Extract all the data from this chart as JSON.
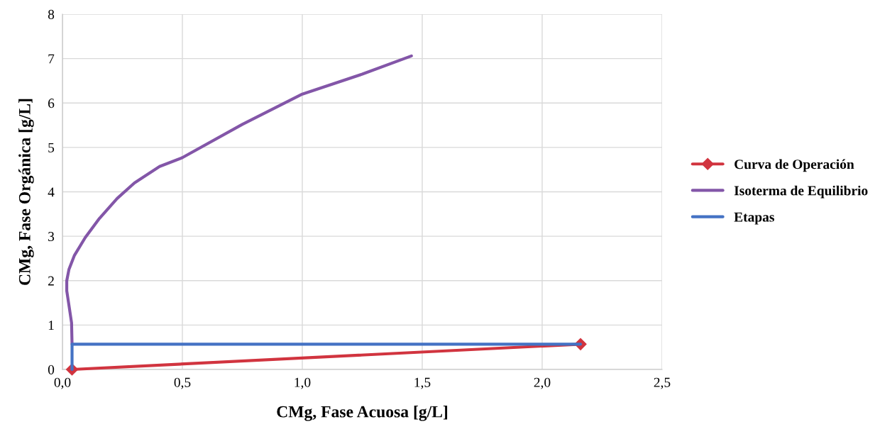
{
  "chart_data": {
    "type": "line",
    "xlabel": "CMg, Fase Acuosa [g/L]",
    "ylabel": "CMg, Fase Orgánica [g/L]",
    "series": [
      {
        "name": "Curva de Operación",
        "color": "#d1343f",
        "marker": "diamond",
        "x": [
          0.04,
          2.16
        ],
        "values": [
          0,
          0.57
        ]
      },
      {
        "name": "Isoterma de Equilibrio",
        "color": "#8356a8",
        "marker": "none",
        "x": [
          0.04,
          0.038,
          0.027,
          0.018,
          0.018,
          0.027,
          0.05,
          0.095,
          0.154,
          0.228,
          0.3,
          0.405,
          0.5,
          0.75,
          1.0,
          1.25,
          1.455
        ],
        "values": [
          0.57,
          1.05,
          1.45,
          1.77,
          2.0,
          2.25,
          2.57,
          2.97,
          3.4,
          3.85,
          4.2,
          4.57,
          4.77,
          5.52,
          6.2,
          6.65,
          7.06
        ]
      },
      {
        "name": "Etapas",
        "color": "#4472c4",
        "marker": "none",
        "x": [
          2.16,
          0.04,
          0.04
        ],
        "values": [
          0.57,
          0.57,
          0
        ]
      }
    ],
    "xlim": [
      0,
      2.5
    ],
    "xticks": [
      {
        "value": 0,
        "label": "0,0"
      },
      {
        "value": 0.5,
        "label": "0,5"
      },
      {
        "value": 1,
        "label": "1,0"
      },
      {
        "value": 1.5,
        "label": "1,5"
      },
      {
        "value": 2,
        "label": "2,0"
      },
      {
        "value": 2.5,
        "label": "2,5"
      }
    ],
    "ylim": [
      0,
      8
    ],
    "yticks": [
      0,
      1,
      2,
      3,
      4,
      5,
      6,
      7,
      8
    ],
    "grid": true,
    "legend": "right",
    "line_style": "solid"
  }
}
